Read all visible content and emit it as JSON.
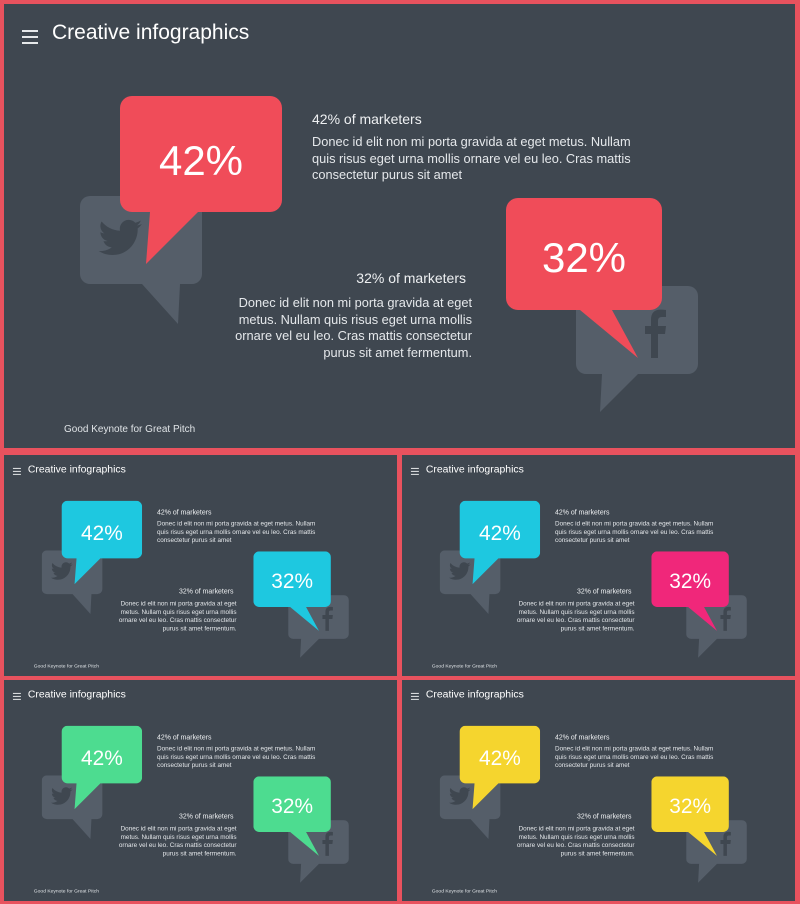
{
  "main": {
    "title": "Creative infographics",
    "stat1": {
      "percent": "42%",
      "heading": "42% of marketers",
      "text": "Donec id elit non mi porta gravida at eget metus. Nullam quis risus eget urna mollis ornare vel eu leo. Cras mattis consectetur purus sit amet"
    },
    "stat2": {
      "percent": "32%",
      "heading": "32% of marketers",
      "text": "Donec id elit non mi porta gravida at eget metus. Nullam quis risus eget urna mollis ornare vel eu leo. Cras mattis consectetur purus sit amet fermentum."
    },
    "footer": "Good Keynote for Great Pitch"
  },
  "icons": {
    "left_social": "twitter-icon",
    "right_social": "facebook-icon",
    "menu": "menu-icon"
  },
  "themes": [
    {
      "bubble1": "#f04c59",
      "bubble2": "#f04c59"
    },
    {
      "bubble1": "#1ec8e0",
      "bubble2": "#1ec8e0"
    },
    {
      "bubble1": "#1ec8e0",
      "bubble2": "#f0277a"
    },
    {
      "bubble1": "#4ddc90",
      "bubble2": "#4ddc90"
    },
    {
      "bubble1": "#f5d52e",
      "bubble2": "#f5d52e"
    }
  ],
  "colors": {
    "background": "#3f4750",
    "frame": "#e8525e",
    "social_bubble": "#555e69",
    "social_glyph": "#3f4750"
  }
}
